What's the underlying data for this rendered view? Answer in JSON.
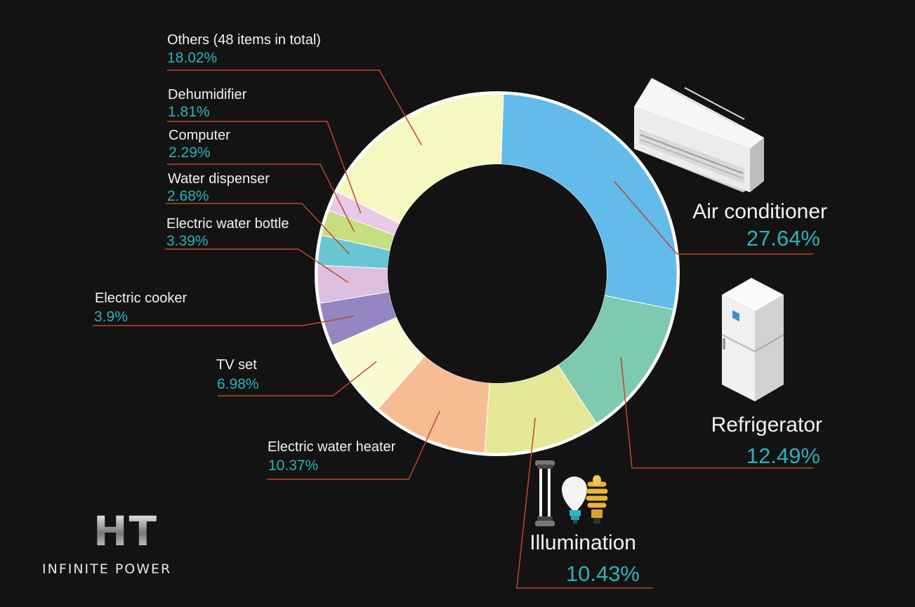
{
  "brand": {
    "logo_text": "HT",
    "tagline": "INFINITE POWER"
  },
  "chart_data": {
    "type": "pie",
    "donut": true,
    "categories": [
      "Air conditioner",
      "Refrigerator",
      "Illumination",
      "Electric water heater",
      "TV set",
      "Electric cooker",
      "Electric water bottle",
      "Water dispenser",
      "Computer",
      "Dehumidifier",
      "Others (48 items in total)"
    ],
    "values": [
      27.64,
      12.49,
      10.43,
      10.37,
      6.98,
      3.9,
      3.39,
      2.68,
      2.29,
      1.81,
      18.02
    ],
    "value_labels": [
      "27.64%",
      "12.49%",
      "10.43%",
      "10.37%",
      "6.98%",
      "3.9%",
      "3.39%",
      "2.68%",
      "2.29%",
      "1.81%",
      "18.02%"
    ],
    "colors": [
      "#62bbea",
      "#7ecaae",
      "#e3e796",
      "#f6bd92",
      "#fafad2",
      "#9486c2",
      "#dcbfde",
      "#6ac5d3",
      "#c8dc80",
      "#e6cae8",
      "#f6f8c2"
    ],
    "legend": "none"
  },
  "icons": {
    "air_conditioner": "air-conditioner-icon",
    "refrigerator": "refrigerator-icon",
    "illumination": "light-bulbs-icon"
  }
}
